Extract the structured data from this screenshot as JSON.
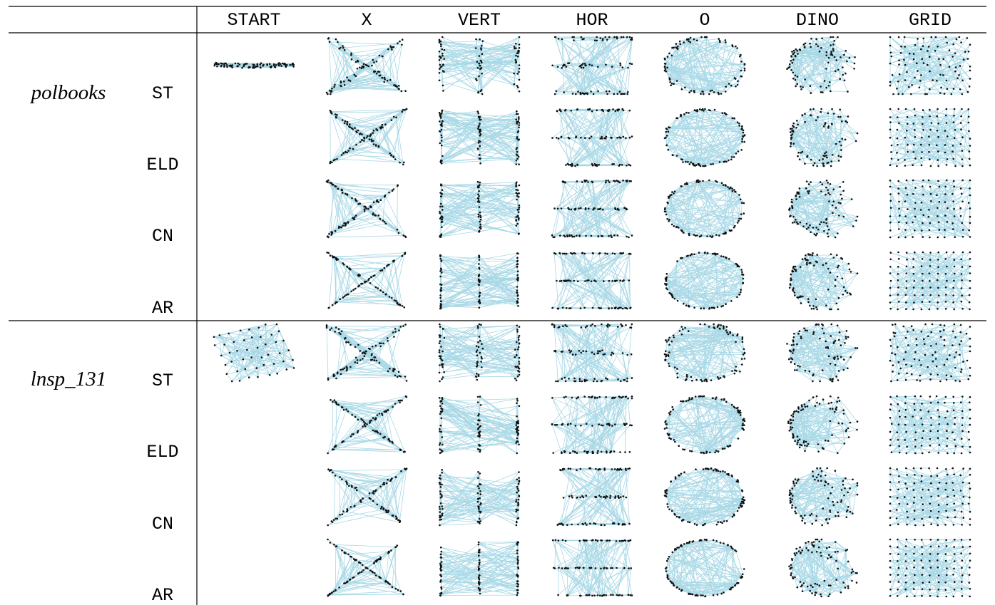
{
  "columns": [
    {
      "label": "START"
    },
    {
      "label": "X",
      "shape": "x"
    },
    {
      "label": "VERT",
      "shape": "vert"
    },
    {
      "label": "HOR",
      "shape": "hor"
    },
    {
      "label": "O",
      "shape": "o"
    },
    {
      "label": "DINO",
      "shape": "dino"
    },
    {
      "label": "GRID",
      "shape": "grid"
    }
  ],
  "datasets": [
    {
      "name": "polbooks",
      "start_shape": "blob",
      "rows": [
        "ST",
        "ELD",
        "CN",
        "AR"
      ]
    },
    {
      "name": "lnsp_131",
      "start_shape": "mesh",
      "rows": [
        "ST",
        "ELD",
        "CN",
        "AR"
      ]
    }
  ],
  "colors": {
    "edge": "#a8d8e6",
    "node": "#111111",
    "rule": "#000000"
  }
}
